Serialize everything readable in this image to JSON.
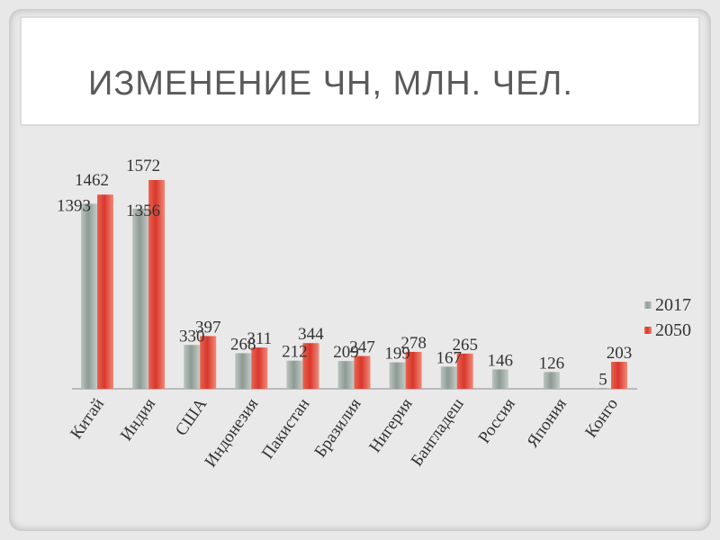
{
  "slide": {
    "title": "ИЗМЕНЕНИЕ ЧН, МЛН. ЧЕЛ."
  },
  "colors": {
    "series_2017": "#8e9a94",
    "series_2050": "#d8372c",
    "background": "#e9e9e9",
    "title_box": "#ffffff"
  },
  "chart_data": {
    "type": "bar",
    "title": "ИЗМЕНЕНИЕ ЧН, МЛН. ЧЕЛ.",
    "categories": [
      "Китай",
      "Индия",
      "США",
      "Индонезия",
      "Пакистан",
      "Бразилия",
      "Нигерия",
      "Бангладеш",
      "Россия",
      "Япония",
      "Конго"
    ],
    "series": [
      {
        "name": "2017",
        "values": [
          1393,
          1356,
          330,
          268,
          212,
          209,
          199,
          167,
          146,
          126,
          5
        ]
      },
      {
        "name": "2050",
        "values": [
          1462,
          1572,
          397,
          311,
          344,
          247,
          278,
          265,
          null,
          null,
          203
        ]
      }
    ],
    "value_labels": {
      "2017": [
        "1393",
        "1356",
        "330",
        "268",
        "212",
        "209",
        "199",
        "167",
        "146",
        "126",
        "5"
      ],
      "2050": [
        "1462",
        "1572",
        "397",
        "311",
        "344",
        "247",
        "278",
        "265",
        "",
        "",
        "203"
      ]
    },
    "xlabel": "",
    "ylabel": "",
    "ylim": [
      0,
      1600
    ],
    "grid": false,
    "legend": "right"
  }
}
